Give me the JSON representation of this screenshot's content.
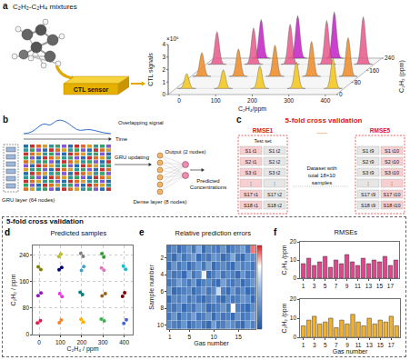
{
  "chart_data": [
    {
      "panel": "a",
      "type": "waterfall3d",
      "zlabel": "CTL signals",
      "zscale": "×10⁵",
      "xlabel": "C₂H₄/ppm",
      "ylabel": "C₂H₂ (ppm)",
      "xlim": [
        -30,
        430
      ],
      "xticks": [
        0,
        100,
        200,
        300,
        400
      ],
      "ylim": [
        0,
        240
      ],
      "yticks": [
        0,
        80,
        160,
        240
      ],
      "zlim": [
        0,
        4
      ],
      "zticks": [
        0,
        1,
        2,
        3,
        4
      ],
      "series": [
        {
          "y": 40,
          "color": "#f5c518",
          "x": [
            0,
            100,
            200,
            300,
            400
          ],
          "values": [
            1.2,
            1.5,
            1.8,
            2.1,
            2.4
          ]
        },
        {
          "y": 120,
          "color": "#f08a24",
          "x": [
            0,
            100,
            200,
            300,
            400
          ],
          "values": [
            1.9,
            2.2,
            2.5,
            2.8,
            3.1
          ]
        },
        {
          "y": 200,
          "color": "#e8578a",
          "x": [
            0,
            100,
            200,
            300,
            400
          ],
          "values": [
            2.6,
            2.9,
            3.2,
            3.5,
            3.8
          ]
        },
        {
          "y": 240,
          "color": "#c21fc4",
          "x": [
            100,
            200,
            300
          ],
          "values": [
            3.1,
            3.4,
            3.7
          ]
        }
      ]
    },
    {
      "panel": "d",
      "type": "scatter",
      "title": "Predicted samples",
      "xlabel": "C₂H₄ / ppm",
      "ylabel": "C₂H₂ / ppm",
      "xlim": [
        -30,
        440
      ],
      "xticks": [
        0,
        100,
        200,
        300,
        400
      ],
      "ylim": [
        0,
        270
      ],
      "yticks": [
        0,
        80,
        160,
        240
      ],
      "grid": true,
      "series": [
        {
          "color": "#e6194b",
          "x": [
            6,
            -8
          ],
          "y": [
            42,
            35
          ]
        },
        {
          "color": "#f58231",
          "x": [
            104,
            95
          ],
          "y": [
            44,
            36
          ]
        },
        {
          "color": "#ffb000",
          "x": [
            197,
            208
          ],
          "y": [
            46,
            38
          ]
        },
        {
          "color": "#3cb44b",
          "x": [
            306,
            292
          ],
          "y": [
            41,
            47
          ]
        },
        {
          "color": "#4363d8",
          "x": [
            398,
            410
          ],
          "y": [
            34,
            45
          ]
        },
        {
          "color": "#911eb4",
          "x": [
            -5,
            9
          ],
          "y": [
            118,
            126
          ]
        },
        {
          "color": "#f032e6",
          "x": [
            97,
            108
          ],
          "y": [
            124,
            115
          ]
        },
        {
          "color": "#008080",
          "x": [
            204,
            193
          ],
          "y": [
            121,
            128
          ]
        },
        {
          "color": "#9a6324",
          "x": [
            296,
            311
          ],
          "y": [
            117,
            124
          ]
        },
        {
          "color": "#800000",
          "x": [
            402,
            392
          ],
          "y": [
            127,
            116
          ]
        },
        {
          "color": "#808000",
          "x": [
            8,
            -4
          ],
          "y": [
            197,
            205
          ]
        },
        {
          "color": "#000075",
          "x": [
            106,
            94
          ],
          "y": [
            203,
            196
          ]
        },
        {
          "color": "#46a0c8",
          "x": [
            199,
            210
          ],
          "y": [
            194,
            206
          ]
        },
        {
          "color": "#e377c2",
          "x": [
            293,
            305
          ],
          "y": [
            202,
            195
          ]
        },
        {
          "color": "#17becf",
          "x": [
            407,
            396
          ],
          "y": [
            198,
            207
          ]
        },
        {
          "color": "#bcbd22",
          "x": [
            102,
            93
          ],
          "y": [
            244,
            236
          ]
        },
        {
          "color": "#7f7f7f",
          "x": [
            196,
            207
          ],
          "y": [
            246,
            237
          ]
        },
        {
          "color": "#2ca02c",
          "x": [
            304,
            295
          ],
          "y": [
            235,
            245
          ]
        }
      ]
    },
    {
      "panel": "e",
      "type": "heatmap",
      "title": "Relative prediction errors",
      "xlabel": "Gas number",
      "ylabel": "Sample number",
      "x": [
        1,
        2,
        3,
        4,
        5,
        6,
        7,
        8,
        9,
        10,
        11,
        12,
        13,
        14,
        15,
        16,
        17,
        18
      ],
      "y": [
        1,
        2,
        3,
        4,
        5,
        6,
        7,
        8,
        9,
        10
      ],
      "xlim": [
        0.5,
        18.5
      ],
      "xticks": [
        1,
        5,
        10,
        15
      ],
      "ylim": [
        10.5,
        0.5
      ],
      "yticks": [
        2,
        4,
        6,
        8,
        10
      ],
      "zlim": [
        0,
        20
      ],
      "cells": [
        [
          3,
          5,
          2,
          4,
          6,
          3,
          8,
          2,
          5,
          4,
          3,
          6,
          2,
          4,
          5,
          7,
          3,
          18
        ],
        [
          4,
          2,
          6,
          3,
          5,
          7,
          2,
          4,
          3,
          6,
          5,
          2,
          4,
          8,
          3,
          2,
          6,
          5
        ],
        [
          2,
          6,
          3,
          5,
          2,
          4,
          6,
          3,
          7,
          2,
          4,
          5,
          3,
          2,
          6,
          4,
          5,
          3
        ],
        [
          5,
          3,
          4,
          2,
          7,
          3,
          5,
          14,
          2,
          4,
          6,
          3,
          5,
          4,
          2,
          6,
          3,
          4
        ],
        [
          3,
          4,
          7,
          5,
          3,
          6,
          2,
          4,
          5,
          3,
          2,
          7,
          4,
          3,
          5,
          2,
          4,
          6
        ],
        [
          6,
          2,
          3,
          4,
          5,
          2,
          4,
          6,
          3,
          5,
          12,
          4,
          2,
          6,
          3,
          5,
          2,
          3
        ],
        [
          2,
          5,
          4,
          6,
          3,
          5,
          3,
          2,
          4,
          6,
          3,
          2,
          5,
          3,
          4,
          6,
          5,
          2
        ],
        [
          4,
          3,
          5,
          2,
          4,
          3,
          6,
          5,
          2,
          3,
          4,
          6,
          3,
          15,
          4,
          3,
          2,
          5
        ],
        [
          3,
          6,
          2,
          5,
          4,
          7,
          3,
          4,
          6,
          2,
          5,
          3,
          4,
          2,
          6,
          3,
          4,
          7
        ],
        [
          5,
          4,
          3,
          6,
          2,
          4,
          5,
          3,
          2,
          7,
          3,
          4,
          6,
          5,
          3,
          2,
          6,
          4
        ]
      ]
    },
    {
      "panel": "f",
      "type": "bar",
      "title": "RMSEs",
      "ylabel": "C₂H₄ /ppm",
      "color": "#d94a8c",
      "x": [
        1,
        2,
        3,
        4,
        5,
        6,
        7,
        8,
        9,
        10,
        11,
        12,
        13,
        14,
        15,
        16,
        17,
        18
      ],
      "values": [
        8,
        11,
        7,
        9,
        12,
        6,
        10,
        8,
        13,
        9,
        7,
        11,
        8,
        10,
        9,
        12,
        7,
        10
      ],
      "xlim": [
        0.4,
        18.6
      ],
      "xticks": [
        1,
        3,
        5,
        7,
        9,
        11,
        13,
        15,
        17
      ],
      "ylim": [
        0,
        20
      ],
      "yticks": [
        0,
        10,
        20
      ]
    },
    {
      "type": "bar",
      "xlabel": "Gas number",
      "ylabel": "C₂H₂ /ppm",
      "color": "#f0b030",
      "x": [
        1,
        2,
        3,
        4,
        5,
        6,
        7,
        8,
        9,
        10,
        11,
        12,
        13,
        14,
        15,
        16,
        17,
        18
      ],
      "values": [
        6,
        9,
        11,
        7,
        8,
        10,
        5,
        9,
        7,
        12,
        8,
        6,
        10,
        7,
        9,
        8,
        11,
        6
      ],
      "xlim": [
        0.4,
        18.6
      ],
      "xticks": [
        1,
        3,
        5,
        7,
        9,
        11,
        13,
        15,
        17
      ],
      "ylim": [
        0,
        20
      ],
      "yticks": [
        0,
        10,
        20
      ]
    }
  ],
  "diagrams": {
    "a": {
      "letter": "a",
      "mixture_label": "C₂H₂-C₂H₄ mixtures",
      "sensor_label": "CTL sensor"
    },
    "b": {
      "letter": "b",
      "signal_label": "Overlapping signal",
      "time_label": "Time",
      "gru_label": "GRU layer (64 nodes)",
      "updating_label": "GRU updating",
      "dense_label": "Dense layer (8 nodes)",
      "output_label": "Output (2 nodes)",
      "result_label": "Predicted Concentrations"
    },
    "c": {
      "letter": "c",
      "title": "5-fold cross validation",
      "ellipsis": "......",
      "dataset": "Dataset with total 18×10 samples",
      "folds": [
        {
          "label": "RMSE1",
          "header": "Test set",
          "rows": [
            [
              "S1 t1",
              "S1 t2"
            ],
            [
              "S2 t1",
              "S2 t2"
            ],
            [
              "S3 t1",
              "S3 t2"
            ],
            [
              "⋮",
              "⋮"
            ],
            [
              "S17 t1",
              "S17 t2"
            ],
            [
              "S18 t1",
              "S18 t2"
            ]
          ]
        },
        {
          "label": "RMSE5",
          "rows": [
            [
              "S1 t9",
              "S1 t10"
            ],
            [
              "S2 t9",
              "S2 t10"
            ],
            [
              "S3 t9",
              "S3 t10"
            ],
            [
              "⋮",
              "⋮"
            ],
            [
              "S17 t9",
              "S17 t10"
            ],
            [
              "S18 t9",
              "S18 t10"
            ]
          ]
        }
      ]
    },
    "box": {
      "title": "5-fold cross validation"
    }
  }
}
